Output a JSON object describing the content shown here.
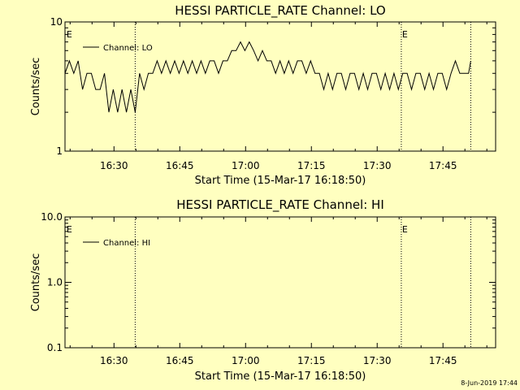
{
  "footer": {
    "timestamp": "8-Jun-2019 17:44"
  },
  "chart_data": [
    {
      "type": "line",
      "title": "HESSI PARTICLE_RATE Channel: LO",
      "xlabel": "Start Time (15-Mar-17 16:18:50)",
      "ylabel": "Counts/sec",
      "yscale": "log",
      "xlim": [
        "16:18:50",
        "17:57:00"
      ],
      "ylim": [
        1,
        10
      ],
      "x_ticks": [
        "16:30",
        "16:45",
        "17:00",
        "17:15",
        "17:30",
        "17:45"
      ],
      "y_ticks": [
        "1",
        "10"
      ],
      "legend_position": "top-left",
      "grid": false,
      "series_color": "#000000",
      "vlines": [
        "16:34:50",
        "17:35:30",
        "17:51:20"
      ],
      "markers": [
        {
          "label": "E",
          "x": "16:19:00"
        },
        {
          "label": "E",
          "x": "17:35:30"
        }
      ],
      "series": [
        {
          "name": "Channel: LO",
          "points": [
            [
              "16:18:50",
              4
            ],
            [
              "16:19:50",
              5
            ],
            [
              "16:20:50",
              4
            ],
            [
              "16:21:50",
              5
            ],
            [
              "16:22:50",
              3
            ],
            [
              "16:23:50",
              4
            ],
            [
              "16:24:50",
              4
            ],
            [
              "16:25:50",
              3
            ],
            [
              "16:26:50",
              3
            ],
            [
              "16:27:50",
              4
            ],
            [
              "16:28:50",
              2
            ],
            [
              "16:29:50",
              3
            ],
            [
              "16:30:50",
              2
            ],
            [
              "16:31:50",
              3
            ],
            [
              "16:32:50",
              2
            ],
            [
              "16:33:50",
              3
            ],
            [
              "16:34:50",
              2
            ],
            [
              "16:35:50",
              4
            ],
            [
              "16:36:50",
              3
            ],
            [
              "16:37:50",
              4
            ],
            [
              "16:38:50",
              4
            ],
            [
              "16:39:50",
              5
            ],
            [
              "16:40:50",
              4
            ],
            [
              "16:41:50",
              5
            ],
            [
              "16:42:50",
              4
            ],
            [
              "16:43:50",
              5
            ],
            [
              "16:44:50",
              4
            ],
            [
              "16:45:50",
              5
            ],
            [
              "16:46:50",
              4
            ],
            [
              "16:47:50",
              5
            ],
            [
              "16:48:50",
              4
            ],
            [
              "16:49:50",
              5
            ],
            [
              "16:50:50",
              4
            ],
            [
              "16:51:50",
              5
            ],
            [
              "16:52:50",
              5
            ],
            [
              "16:53:50",
              4
            ],
            [
              "16:54:50",
              5
            ],
            [
              "16:55:50",
              5
            ],
            [
              "16:56:50",
              6
            ],
            [
              "16:57:50",
              6
            ],
            [
              "16:58:50",
              7
            ],
            [
              "16:59:50",
              6
            ],
            [
              "17:00:50",
              7
            ],
            [
              "17:01:50",
              6
            ],
            [
              "17:02:50",
              5
            ],
            [
              "17:03:50",
              6
            ],
            [
              "17:04:50",
              5
            ],
            [
              "17:05:50",
              5
            ],
            [
              "17:06:50",
              4
            ],
            [
              "17:07:50",
              5
            ],
            [
              "17:08:50",
              4
            ],
            [
              "17:09:50",
              5
            ],
            [
              "17:10:50",
              4
            ],
            [
              "17:11:50",
              5
            ],
            [
              "17:12:50",
              5
            ],
            [
              "17:13:50",
              4
            ],
            [
              "17:14:50",
              5
            ],
            [
              "17:15:50",
              4
            ],
            [
              "17:16:50",
              4
            ],
            [
              "17:17:50",
              3
            ],
            [
              "17:18:50",
              4
            ],
            [
              "17:19:50",
              3
            ],
            [
              "17:20:50",
              4
            ],
            [
              "17:21:50",
              4
            ],
            [
              "17:22:50",
              3
            ],
            [
              "17:23:50",
              4
            ],
            [
              "17:24:50",
              4
            ],
            [
              "17:25:50",
              3
            ],
            [
              "17:26:50",
              4
            ],
            [
              "17:27:50",
              3
            ],
            [
              "17:28:50",
              4
            ],
            [
              "17:29:50",
              4
            ],
            [
              "17:30:50",
              3
            ],
            [
              "17:31:50",
              4
            ],
            [
              "17:32:50",
              3
            ],
            [
              "17:33:50",
              4
            ],
            [
              "17:34:50",
              3
            ],
            [
              "17:35:50",
              4
            ],
            [
              "17:36:50",
              4
            ],
            [
              "17:37:50",
              3
            ],
            [
              "17:38:50",
              4
            ],
            [
              "17:39:50",
              4
            ],
            [
              "17:40:50",
              3
            ],
            [
              "17:41:50",
              4
            ],
            [
              "17:42:50",
              3
            ],
            [
              "17:43:50",
              4
            ],
            [
              "17:44:50",
              4
            ],
            [
              "17:45:50",
              3
            ],
            [
              "17:46:50",
              4
            ],
            [
              "17:47:50",
              5
            ],
            [
              "17:48:50",
              4
            ],
            [
              "17:49:50",
              4
            ],
            [
              "17:50:50",
              4
            ],
            [
              "17:51:20",
              5
            ]
          ]
        }
      ]
    },
    {
      "type": "line",
      "title": "HESSI PARTICLE_RATE Channel: HI",
      "xlabel": "Start Time (15-Mar-17 16:18:50)",
      "ylabel": "Counts/sec",
      "yscale": "log",
      "xlim": [
        "16:18:50",
        "17:57:00"
      ],
      "ylim": [
        0.1,
        10
      ],
      "x_ticks": [
        "16:30",
        "16:45",
        "17:00",
        "17:15",
        "17:30",
        "17:45"
      ],
      "y_ticks": [
        "0.1",
        "1.0",
        "10.0"
      ],
      "legend_position": "top-left",
      "grid": false,
      "series_color": "#000000",
      "vlines": [
        "16:34:50",
        "17:35:30",
        "17:51:20"
      ],
      "markers": [
        {
          "label": "E",
          "x": "16:19:00"
        },
        {
          "label": "E",
          "x": "17:35:30"
        }
      ],
      "series": [
        {
          "name": "Channel: HI",
          "points": []
        }
      ]
    }
  ]
}
